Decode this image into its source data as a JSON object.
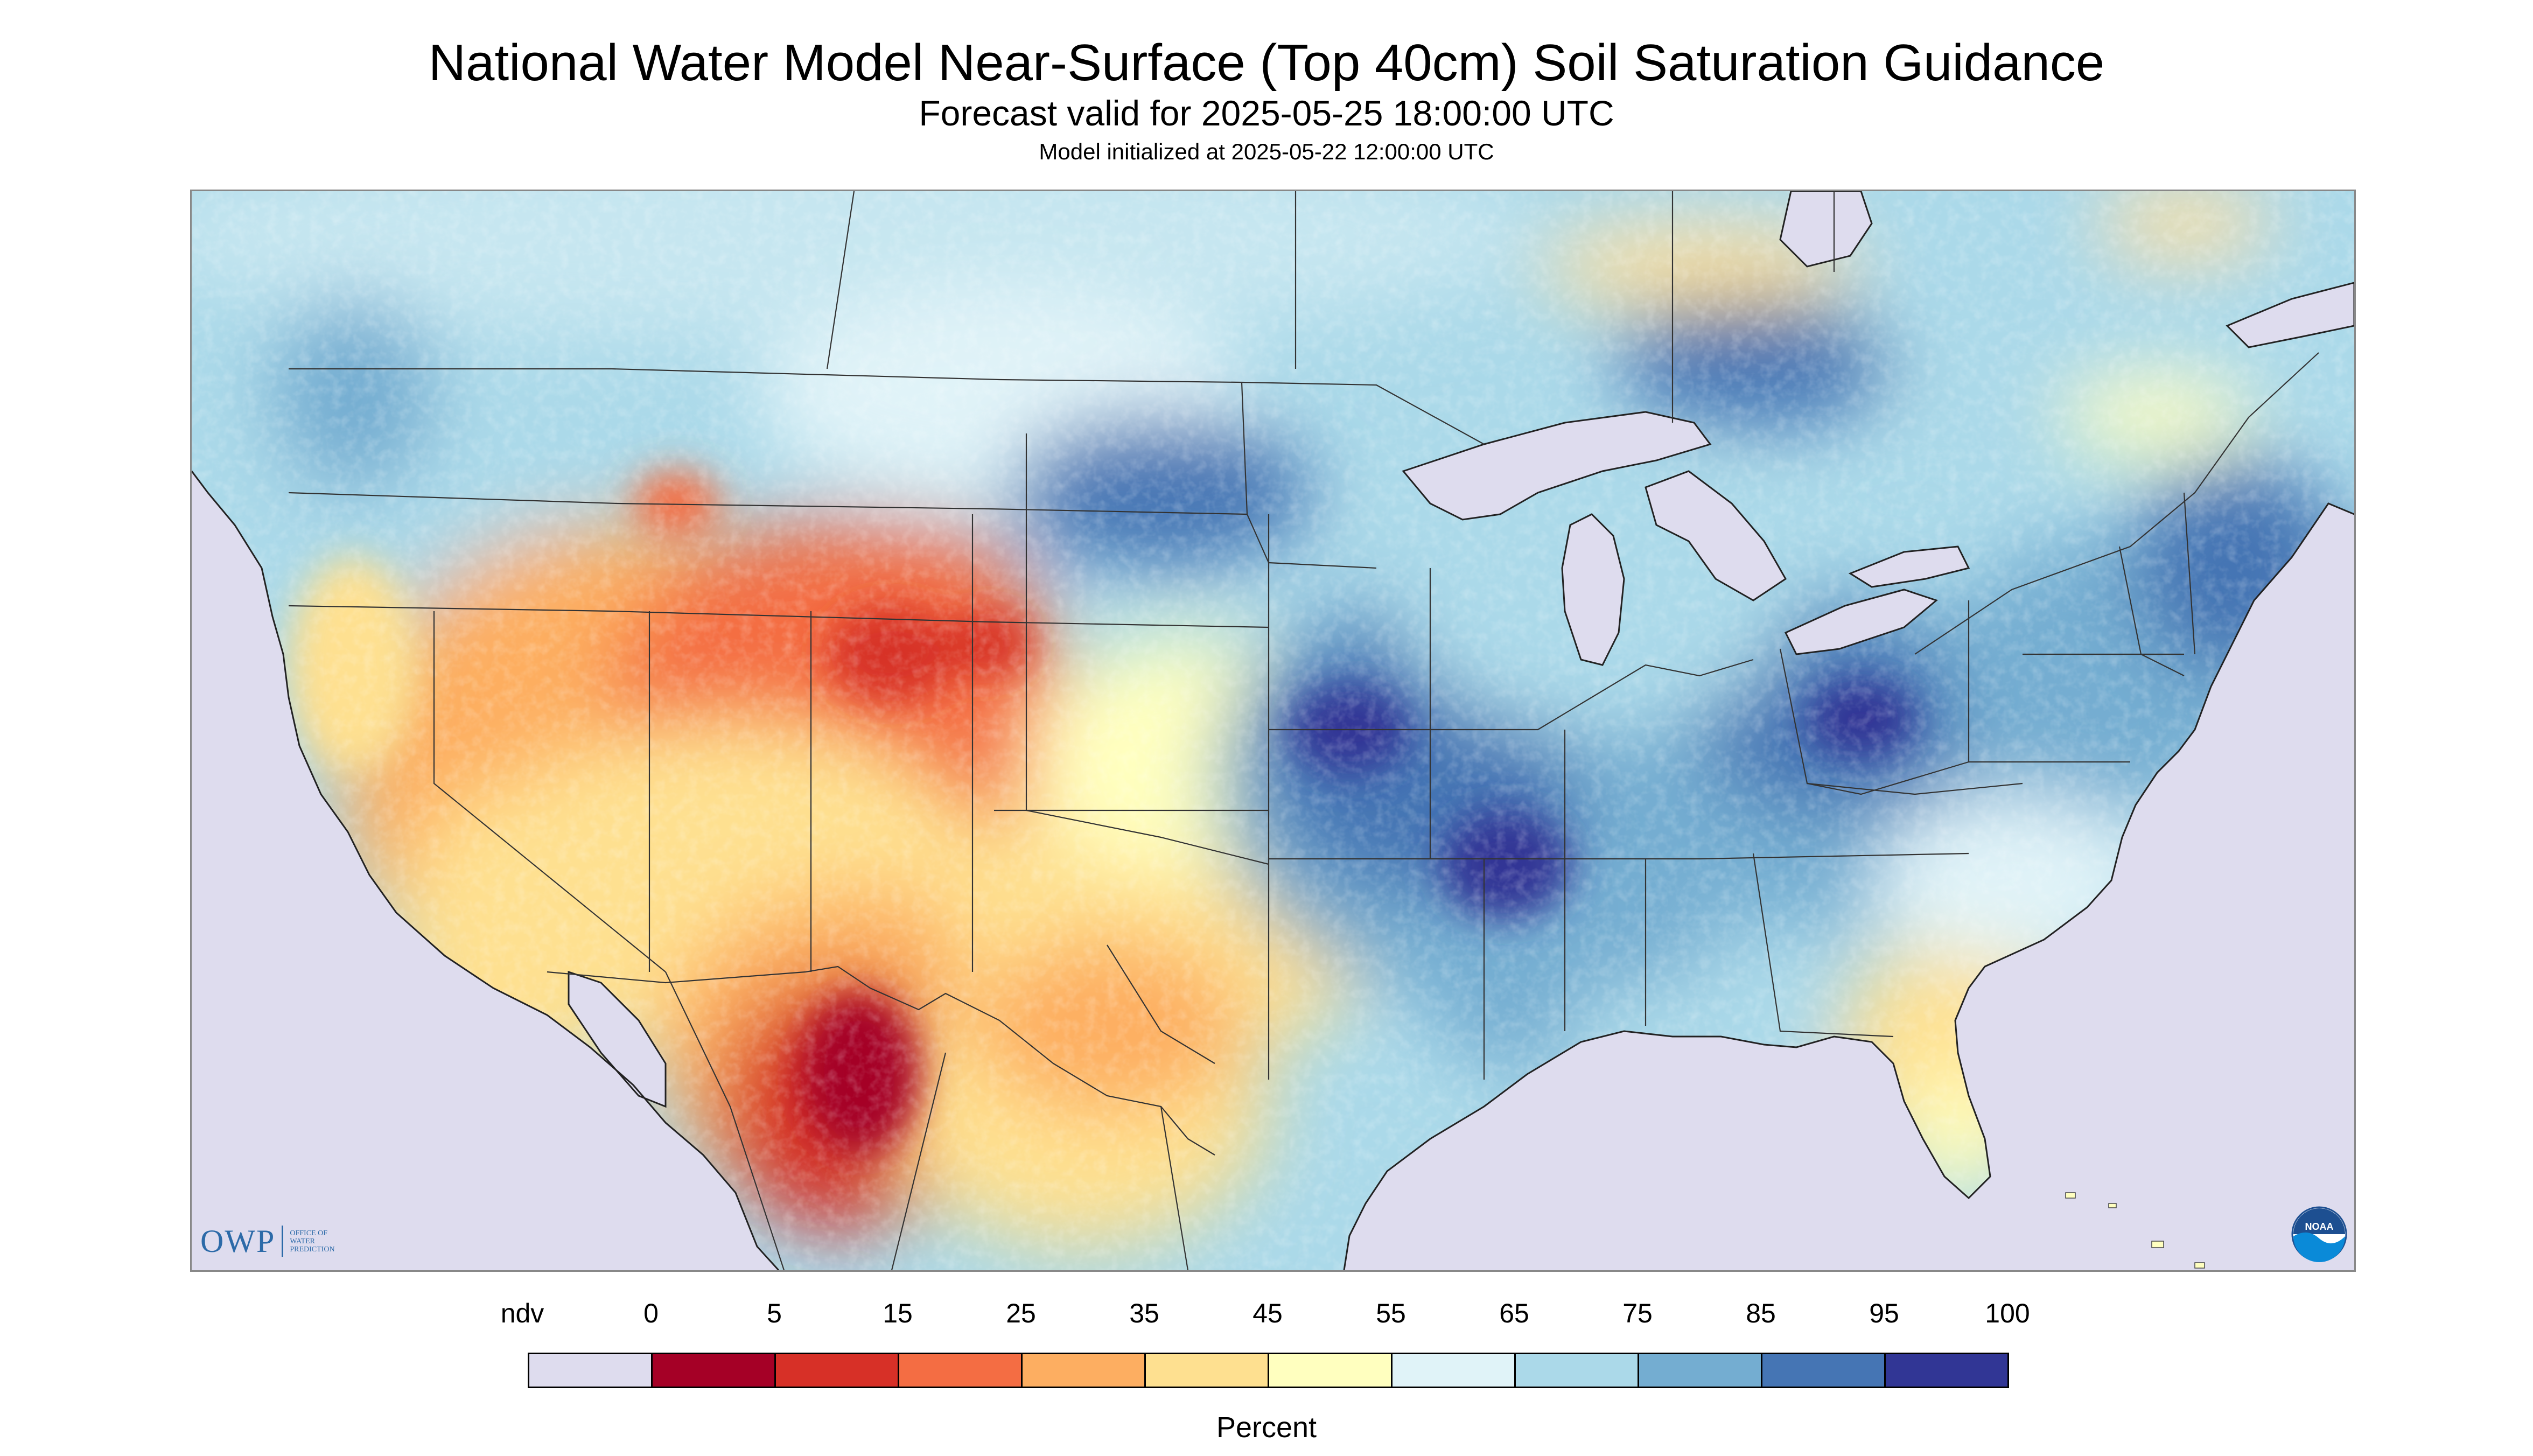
{
  "title": "National Water Model Near-Surface (Top 40cm) Soil Saturation Guidance",
  "subtitle": "Forecast valid for 2025-05-25 18:00:00 UTC",
  "init_note": "Model initialized at 2025-05-22 12:00:00 UTC",
  "logos": {
    "owp": {
      "mark": "OWP",
      "line1": "OFFICE OF",
      "line2": "WATER",
      "line3": "PREDICTION"
    },
    "noaa": {
      "text": "NOAA"
    }
  },
  "legend": {
    "unit": "Percent",
    "labels": [
      "ndv",
      "0",
      "5",
      "15",
      "25",
      "35",
      "45",
      "55",
      "65",
      "75",
      "85",
      "95",
      "100"
    ],
    "colors": [
      "#dedcee",
      "#a50026",
      "#d73027",
      "#f46d43",
      "#fdae61",
      "#fee090",
      "#ffffbf",
      "#e0f3f8",
      "#abd9e9",
      "#74add1",
      "#4575b4",
      "#313695"
    ]
  },
  "colors": {
    "no_data": "#dedcee",
    "water": "#dedcee",
    "border": "#333333"
  }
}
